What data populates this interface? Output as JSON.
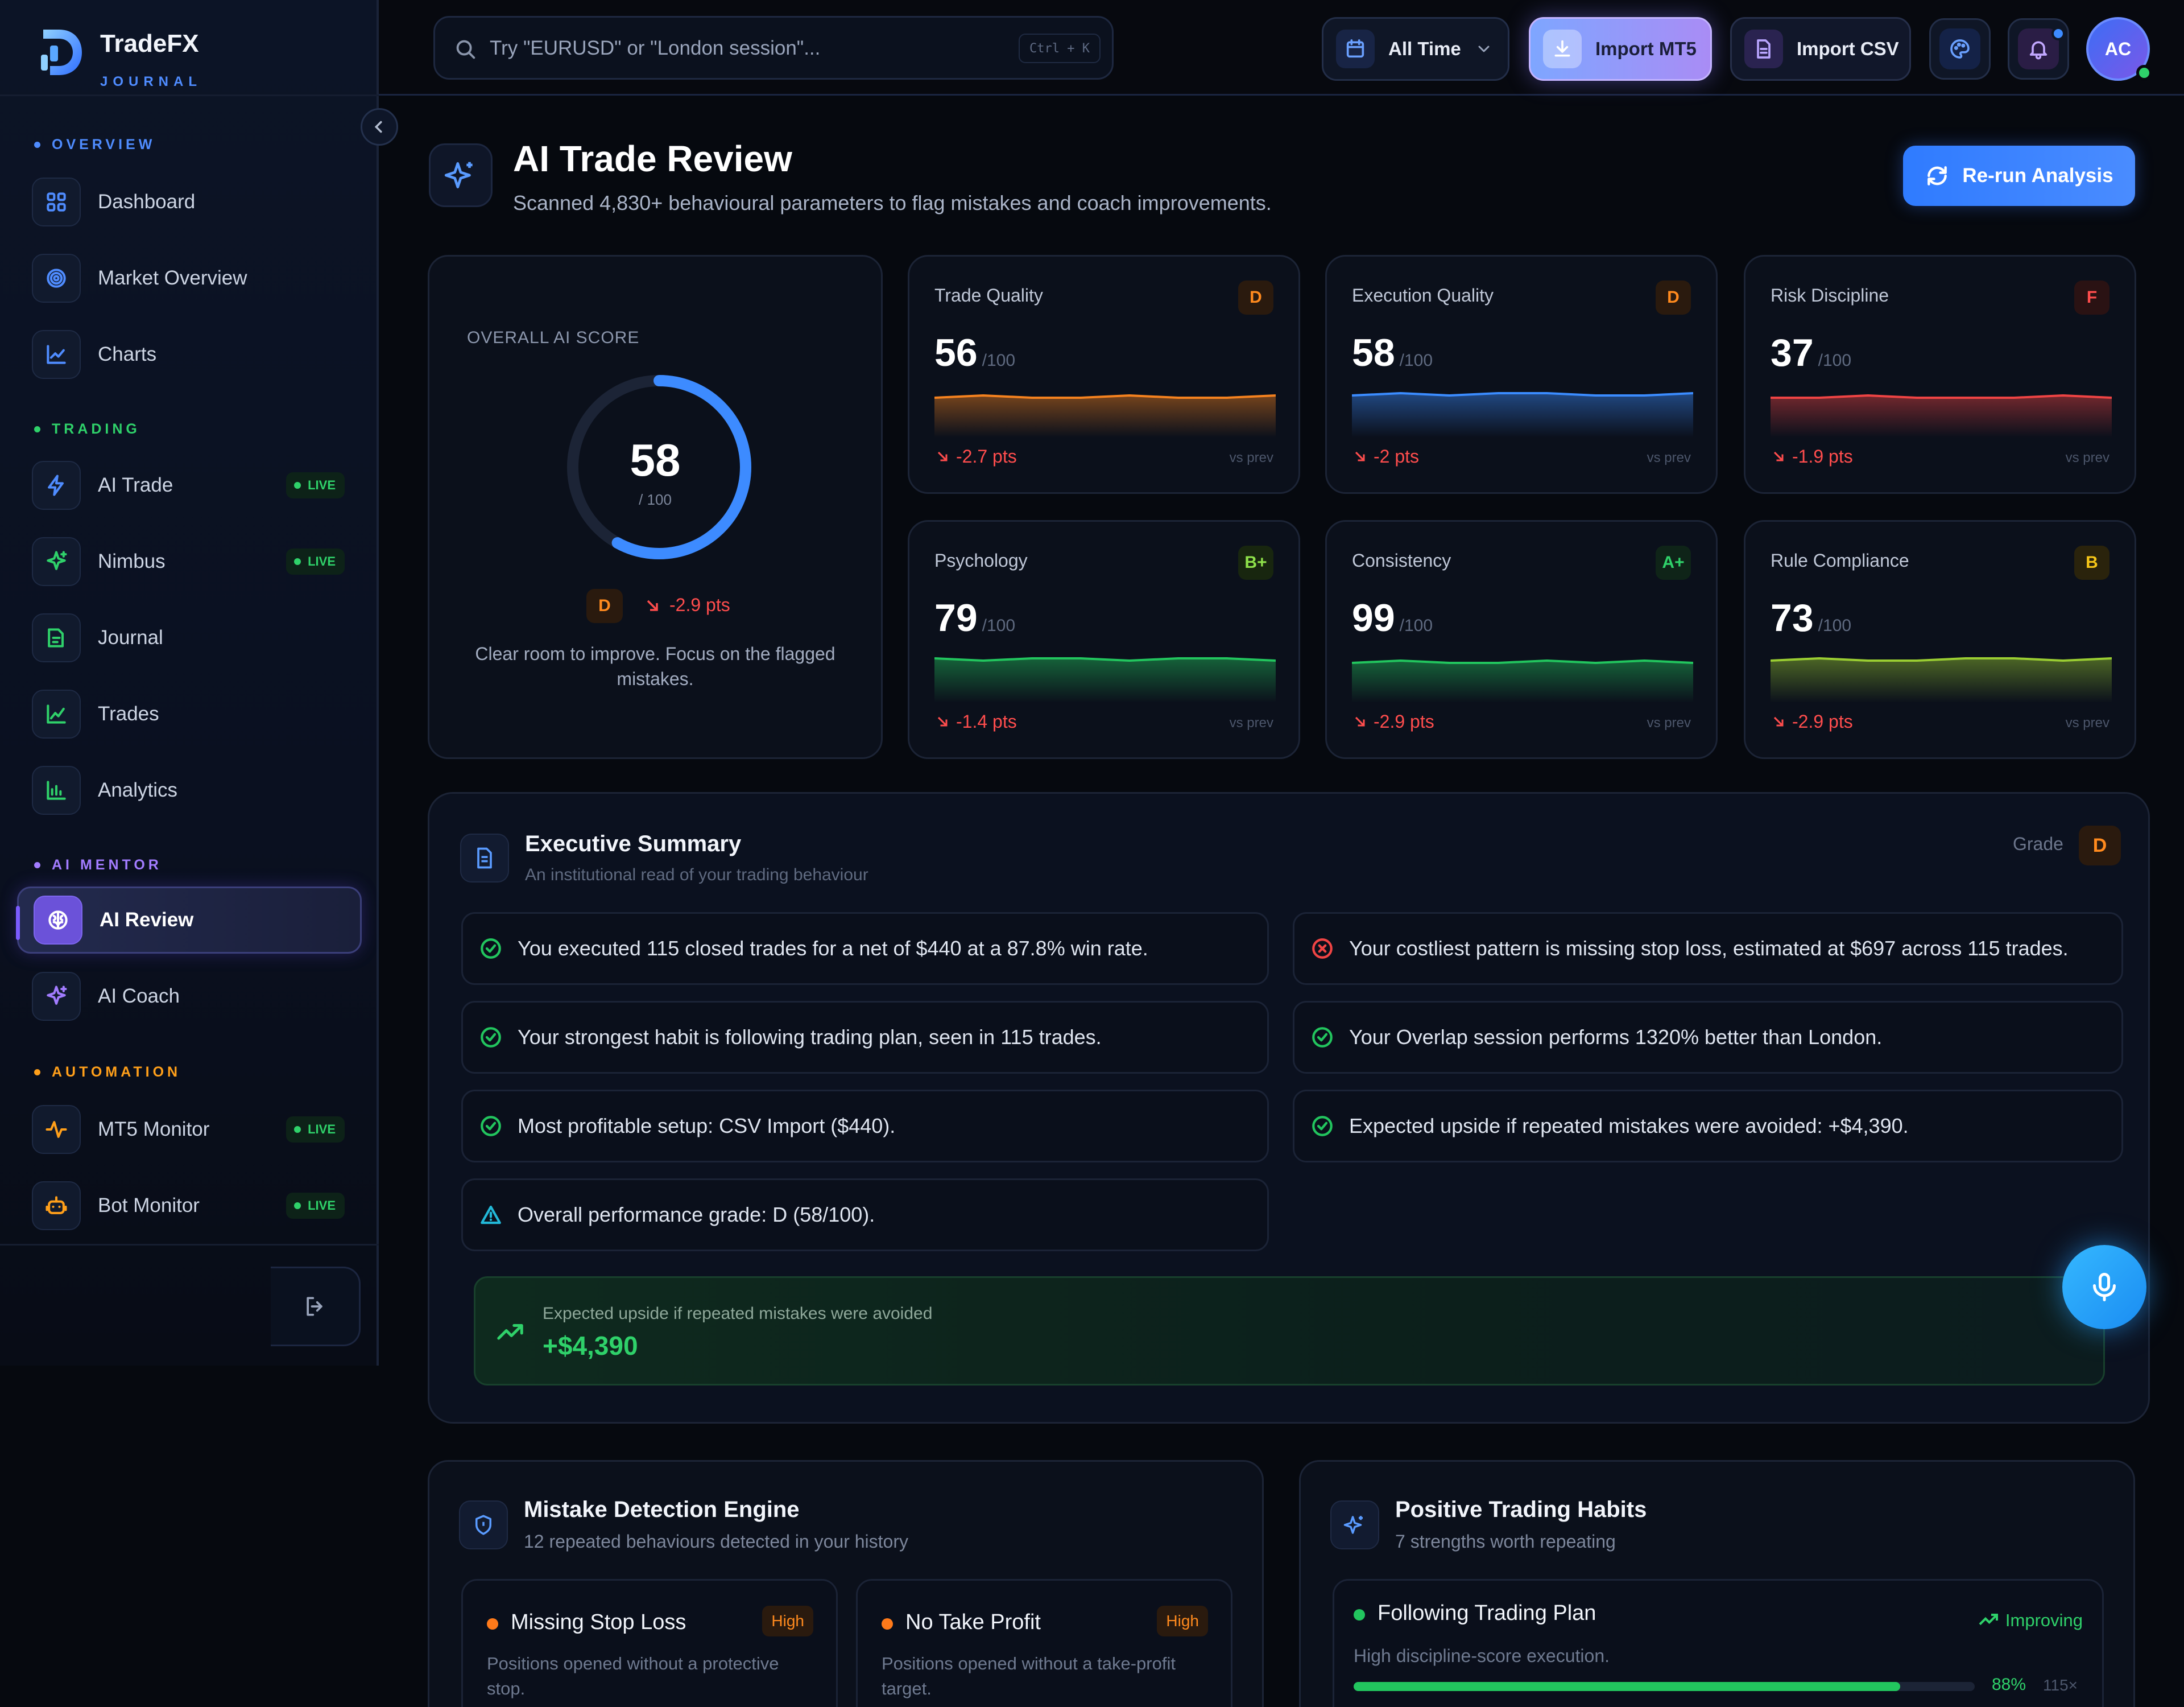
{
  "brand": {
    "name": "TradeFX",
    "sub": "JOURNAL"
  },
  "search": {
    "placeholder": "Try \"EURUSD\" or \"London session\"...",
    "shortcut": "Ctrl + K"
  },
  "topbar": {
    "range": "All Time",
    "import_mt5": "Import MT5",
    "import_csv": "Import CSV",
    "avatar": "AC"
  },
  "sidebar": {
    "sections": [
      {
        "label": "OVERVIEW",
        "color": "#4f8cff"
      },
      {
        "label": "TRADING",
        "color": "#2fd16a"
      },
      {
        "label": "AI MENTOR",
        "color": "#a27cff"
      },
      {
        "label": "AUTOMATION",
        "color": "#ff9f1a"
      }
    ],
    "items": [
      {
        "label": "Dashboard",
        "icon": "grid-icon"
      },
      {
        "label": "Market Overview",
        "icon": "target-icon"
      },
      {
        "label": "Charts",
        "icon": "chart-icon"
      },
      {
        "label": "AI Trade",
        "icon": "bolt-icon",
        "badge": "LIVE"
      },
      {
        "label": "Nimbus",
        "icon": "sparkle-icon",
        "badge": "LIVE"
      },
      {
        "label": "Journal",
        "icon": "edit-icon"
      },
      {
        "label": "Trades",
        "icon": "line-chart-icon"
      },
      {
        "label": "Analytics",
        "icon": "bar-chart-icon"
      },
      {
        "label": "AI Review",
        "icon": "brain-icon",
        "active": true
      },
      {
        "label": "AI Coach",
        "icon": "sparkle-icon"
      },
      {
        "label": "MT5 Monitor",
        "icon": "pulse-icon",
        "badge": "LIVE"
      },
      {
        "label": "Bot Monitor",
        "icon": "bot-icon",
        "badge": "LIVE"
      }
    ]
  },
  "header": {
    "title": "AI Trade Review",
    "subtitle": "Scanned 4,830+ behavioural parameters to flag mistakes and coach improvements.",
    "rerun": "Re-run Analysis"
  },
  "overall": {
    "label": "OVERALL AI SCORE",
    "score": "58",
    "max": "/ 100",
    "score_value": 58,
    "grade": "D",
    "delta": "-2.9 pts",
    "note": "Clear room to improve. Focus on the flagged mistakes."
  },
  "metrics": [
    {
      "label": "Trade Quality",
      "score": "56",
      "max": "/100",
      "grade": "D",
      "delta": "-2.7 pts",
      "vs": "vs prev",
      "color": "#f5821f",
      "gradeColor": "#ff8a1e",
      "gradeBg": "#2a1a0e",
      "trend": [
        50,
        51,
        50,
        50,
        51,
        50,
        50,
        51
      ]
    },
    {
      "label": "Execution Quality",
      "score": "58",
      "max": "/100",
      "grade": "D",
      "delta": "-2 pts",
      "vs": "vs prev",
      "color": "#3b8cff",
      "gradeColor": "#ff8a1e",
      "gradeBg": "#2a1a0e",
      "trend": [
        51,
        52,
        51,
        52,
        52,
        51,
        51,
        52
      ]
    },
    {
      "label": "Risk Discipline",
      "score": "37",
      "max": "/100",
      "grade": "F",
      "delta": "-1.9 pts",
      "vs": "vs prev",
      "color": "#ef4444",
      "gradeColor": "#ff4d4d",
      "gradeBg": "#2a1213",
      "trend": [
        50,
        50,
        51,
        50,
        50,
        50,
        51,
        50
      ]
    },
    {
      "label": "Psychology",
      "score": "79",
      "max": "/100",
      "grade": "B+",
      "delta": "-1.4 pts",
      "vs": "vs prev",
      "color": "#22c55e",
      "gradeColor": "#8ee04a",
      "gradeBg": "#18260f",
      "trend": [
        52,
        51,
        52,
        52,
        51,
        52,
        52,
        51
      ]
    },
    {
      "label": "Consistency",
      "score": "99",
      "max": "/100",
      "grade": "A+",
      "delta": "-2.9 pts",
      "vs": "vs prev",
      "color": "#22c55e",
      "gradeColor": "#2fd16a",
      "gradeBg": "#0f2418",
      "trend": [
        50,
        51,
        50,
        50,
        51,
        50,
        51,
        50
      ]
    },
    {
      "label": "Rule Compliance",
      "score": "73",
      "max": "/100",
      "grade": "B",
      "delta": "-2.9 pts",
      "vs": "vs prev",
      "color": "#9acd32",
      "gradeColor": "#f5c518",
      "gradeBg": "#2a230c",
      "trend": [
        51,
        52,
        51,
        51,
        52,
        52,
        51,
        52
      ]
    }
  ],
  "exec": {
    "title": "Executive Summary",
    "subtitle": "An institutional read of your trading behaviour",
    "grade_label": "Grade",
    "grade": "D",
    "findings": [
      {
        "text": "You executed 115 closed trades for a net of $440 at a 87.8% win rate.",
        "kind": "good"
      },
      {
        "text": "Your costliest pattern is missing stop loss, estimated at $697 across 115 trades.",
        "kind": "bad"
      },
      {
        "text": "Your strongest habit is following trading plan, seen in 115 trades.",
        "kind": "good"
      },
      {
        "text": "Your Overlap session performs 1320% better than London.",
        "kind": "good"
      },
      {
        "text": "Most profitable setup: CSV Import ($440).",
        "kind": "good"
      },
      {
        "text": "Expected upside if repeated mistakes were avoided: +$4,390.",
        "kind": "good"
      },
      {
        "text": "Overall performance grade: D (58/100).",
        "kind": "warn"
      }
    ],
    "upside_label": "Expected upside if repeated mistakes were avoided",
    "upside_value": "+$4,390"
  },
  "mistakes": {
    "title": "Mistake Detection Engine",
    "subtitle": "12 repeated behaviours detected in your history",
    "items": [
      {
        "title": "Missing Stop Loss",
        "severity": "High",
        "desc": "Positions opened without a protective stop."
      },
      {
        "title": "No Take Profit",
        "severity": "High",
        "desc": "Positions opened without a take-profit target."
      }
    ]
  },
  "habits": {
    "title": "Positive Trading Habits",
    "subtitle": "7 strengths worth repeating",
    "items": [
      {
        "title": "Following Trading Plan",
        "trend": "Improving",
        "desc": "High discipline-score execution.",
        "pct": "88%",
        "pct_value": 0.88,
        "count": "115×"
      }
    ]
  }
}
